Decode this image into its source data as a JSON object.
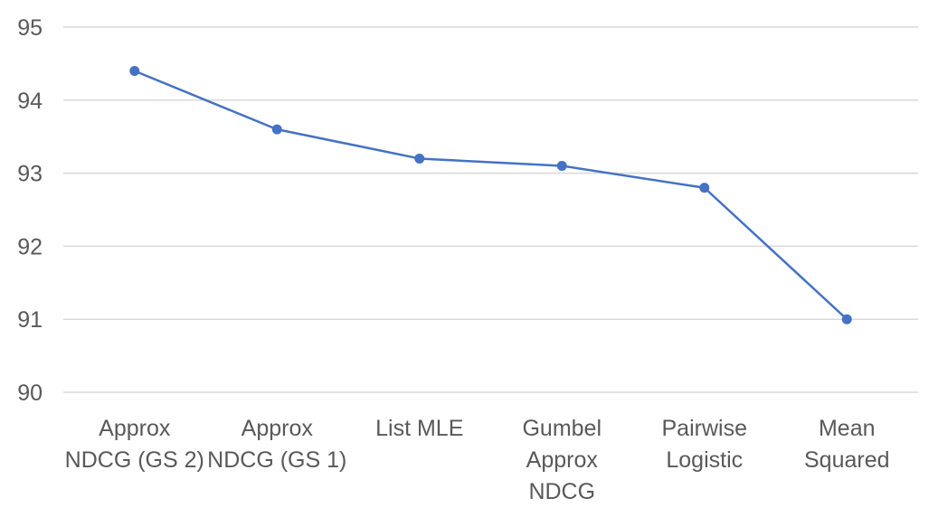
{
  "chart_data": {
    "type": "line",
    "title": "",
    "xlabel": "",
    "ylabel": "",
    "categories": [
      [
        "Approx",
        "NDCG (GS 2)"
      ],
      [
        "Approx",
        "NDCG (GS 1)"
      ],
      [
        "List MLE"
      ],
      [
        "Gumbel",
        "Approx",
        "NDCG"
      ],
      [
        "Pairwise",
        "Logistic"
      ],
      [
        "Mean",
        "Squared"
      ]
    ],
    "series": [
      {
        "values": [
          94.4,
          93.6,
          93.2,
          93.1,
          92.8,
          91.0
        ]
      }
    ],
    "ylim": [
      90,
      95
    ],
    "yticks": [
      90,
      91,
      92,
      93,
      94,
      95
    ],
    "grid": true,
    "legend": "none",
    "colors": {
      "series": "#4472c4",
      "grid": "#d9d9d9",
      "text": "#595959"
    }
  }
}
